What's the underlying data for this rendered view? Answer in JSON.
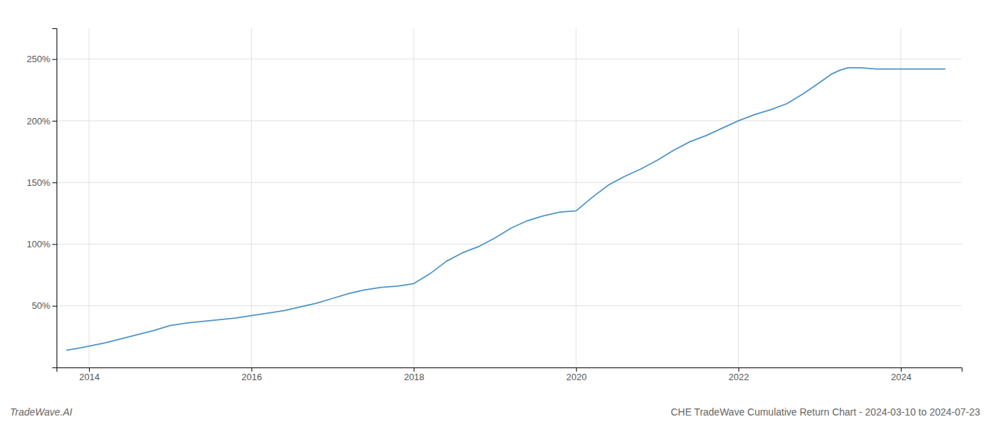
{
  "chart_data": {
    "type": "line",
    "title": "CHE TradeWave Cumulative Return Chart - 2024-03-10 to 2024-07-23",
    "annotations": [
      "TradeWave.AI"
    ],
    "color": "#4d94c8",
    "grid": true,
    "x": [
      2013.72,
      2013.9,
      2014.2,
      2014.5,
      2014.8,
      2015.0,
      2015.2,
      2015.5,
      2015.8,
      2016.0,
      2016.2,
      2016.4,
      2016.6,
      2016.8,
      2017.0,
      2017.2,
      2017.4,
      2017.6,
      2017.8,
      2018.0,
      2018.2,
      2018.4,
      2018.6,
      2018.8,
      2019.0,
      2019.2,
      2019.4,
      2019.6,
      2019.8,
      2020.0,
      2020.2,
      2020.4,
      2020.6,
      2020.8,
      2021.0,
      2021.2,
      2021.4,
      2021.6,
      2021.8,
      2022.0,
      2022.2,
      2022.4,
      2022.6,
      2022.8,
      2023.0,
      2023.15,
      2023.25,
      2023.35,
      2023.5,
      2023.7,
      2023.9,
      2024.1,
      2024.3,
      2024.55
    ],
    "values": [
      14,
      16,
      20,
      25,
      30,
      34,
      36,
      38,
      40,
      42,
      44,
      46,
      49,
      52,
      56,
      60,
      63,
      65,
      66,
      68,
      76,
      86,
      93,
      98,
      105,
      113,
      119,
      123,
      126,
      127,
      138,
      148,
      155,
      161,
      168,
      176,
      183,
      188,
      194,
      200,
      205,
      209,
      214,
      222,
      231,
      238,
      241,
      243,
      243,
      242,
      242,
      242,
      242,
      242
    ],
    "xlim": [
      2013.6,
      2024.75
    ],
    "xticks": [
      2014,
      2016,
      2018,
      2020,
      2022,
      2024
    ],
    "ylim": [
      0,
      275
    ],
    "yticks": [
      {
        "value": 50,
        "label": "50%"
      },
      {
        "value": 100,
        "label": "100%"
      },
      {
        "value": 150,
        "label": "150%"
      },
      {
        "value": 200,
        "label": "200%"
      },
      {
        "value": 250,
        "label": "250%"
      }
    ]
  }
}
